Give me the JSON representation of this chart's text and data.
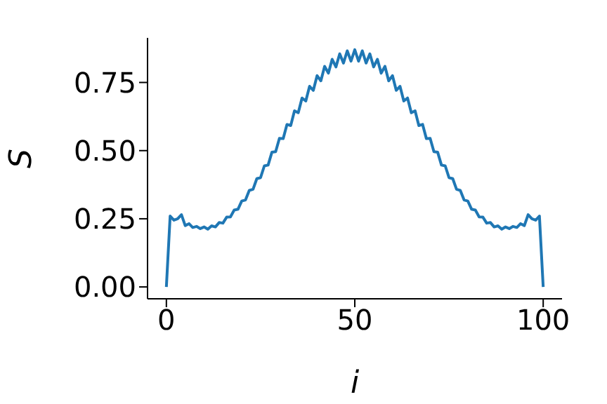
{
  "chart_data": {
    "type": "line",
    "xlabel": "i",
    "ylabel": "S",
    "x": [
      0,
      1,
      2,
      3,
      4,
      5,
      6,
      7,
      8,
      9,
      10,
      11,
      12,
      13,
      14,
      15,
      16,
      17,
      18,
      19,
      20,
      21,
      22,
      23,
      24,
      25,
      26,
      27,
      28,
      29,
      30,
      31,
      32,
      33,
      34,
      35,
      36,
      37,
      38,
      39,
      40,
      41,
      42,
      43,
      44,
      45,
      46,
      47,
      48,
      49,
      50,
      51,
      52,
      53,
      54,
      55,
      56,
      57,
      58,
      59,
      60,
      61,
      62,
      63,
      64,
      65,
      66,
      67,
      68,
      69,
      70,
      71,
      72,
      73,
      74,
      75,
      76,
      77,
      78,
      79,
      80,
      81,
      82,
      83,
      84,
      85,
      86,
      87,
      88,
      89,
      90,
      91,
      92,
      93,
      94,
      95,
      96,
      97,
      98,
      99,
      100
    ],
    "series": [
      {
        "color": "#1f77b4",
        "values": [
          0,
          0.26,
          0.245,
          0.25,
          0.265,
          0.225,
          0.232,
          0.218,
          0.222,
          0.214,
          0.22,
          0.212,
          0.224,
          0.22,
          0.236,
          0.234,
          0.256,
          0.257,
          0.282,
          0.285,
          0.315,
          0.319,
          0.354,
          0.358,
          0.397,
          0.401,
          0.444,
          0.447,
          0.494,
          0.496,
          0.545,
          0.544,
          0.596,
          0.592,
          0.646,
          0.639,
          0.693,
          0.682,
          0.736,
          0.721,
          0.775,
          0.756,
          0.809,
          0.784,
          0.835,
          0.807,
          0.855,
          0.821,
          0.866,
          0.828,
          0.87,
          0.828,
          0.866,
          0.821,
          0.855,
          0.807,
          0.835,
          0.784,
          0.809,
          0.756,
          0.775,
          0.721,
          0.736,
          0.682,
          0.693,
          0.639,
          0.646,
          0.592,
          0.596,
          0.544,
          0.545,
          0.496,
          0.494,
          0.447,
          0.444,
          0.401,
          0.397,
          0.358,
          0.354,
          0.319,
          0.315,
          0.285,
          0.282,
          0.257,
          0.256,
          0.234,
          0.236,
          0.22,
          0.224,
          0.212,
          0.22,
          0.214,
          0.222,
          0.218,
          0.232,
          0.225,
          0.265,
          0.25,
          0.245,
          0.26,
          0
        ]
      }
    ],
    "xlim": [
      -5,
      105
    ],
    "xticks": [
      0,
      50,
      100
    ],
    "ylim": [
      -0.0435,
      0.9135
    ],
    "yticks": [
      {
        "value": 0,
        "label": "0.00"
      },
      {
        "value": 0.25,
        "label": "0.25"
      },
      {
        "value": 0.5,
        "label": "0.50"
      },
      {
        "value": 0.75,
        "label": "0.75"
      }
    ],
    "grid": false,
    "legend": false,
    "line_style": "solid",
    "marker": "none"
  }
}
